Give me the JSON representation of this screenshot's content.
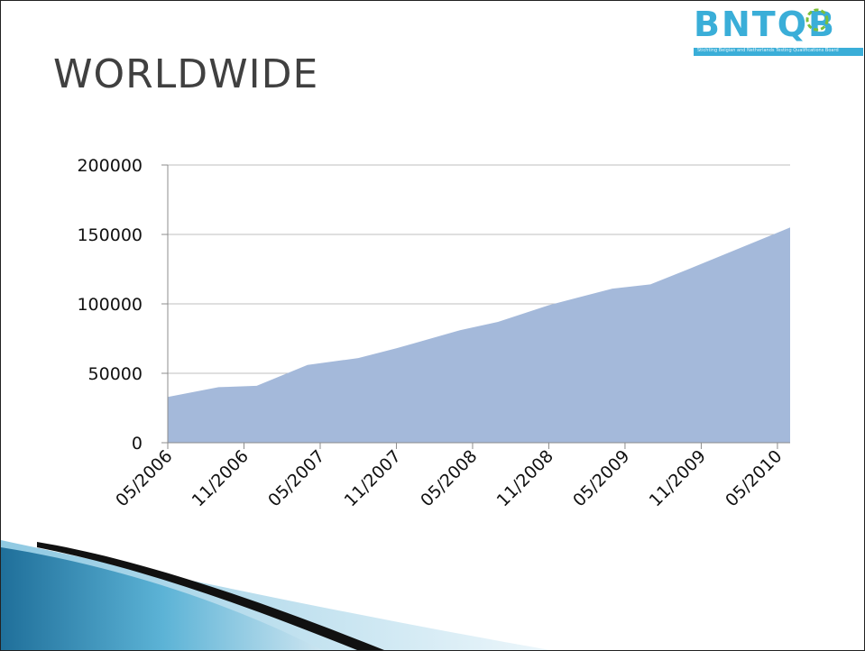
{
  "slide": {
    "title": "WORLDWIDE"
  },
  "logo": {
    "text": "BNTQB",
    "tagline": "Stichting Belgian and Netherlands Testing Qualifications Board",
    "color": "#3aaed8"
  },
  "chart_data": {
    "type": "area",
    "title": "",
    "xlabel": "",
    "ylabel": "",
    "ylim": [
      0,
      200000
    ],
    "yticks": [
      0,
      50000,
      100000,
      150000,
      200000
    ],
    "ytick_labels": [
      "0",
      "50000",
      "100000",
      "150000",
      "200000"
    ],
    "xtick_labels": [
      "05/2006",
      "11/2006",
      "05/2007",
      "11/2007",
      "05/2008",
      "11/2008",
      "05/2009",
      "11/2009",
      "05/2010"
    ],
    "x": [
      "05/2006",
      "09/2006",
      "12/2006",
      "04/2007",
      "08/2007",
      "11/2007",
      "04/2008",
      "07/2008",
      "11/2008",
      "04/2009",
      "07/2009",
      "10/2009",
      "02/2010",
      "06/2010"
    ],
    "values": [
      33000,
      40000,
      41000,
      56000,
      61000,
      68000,
      81000,
      87000,
      99000,
      111000,
      114000,
      125000,
      140000,
      155000
    ],
    "grid": true,
    "legend": "none",
    "fill_color": "#a4b9da"
  }
}
